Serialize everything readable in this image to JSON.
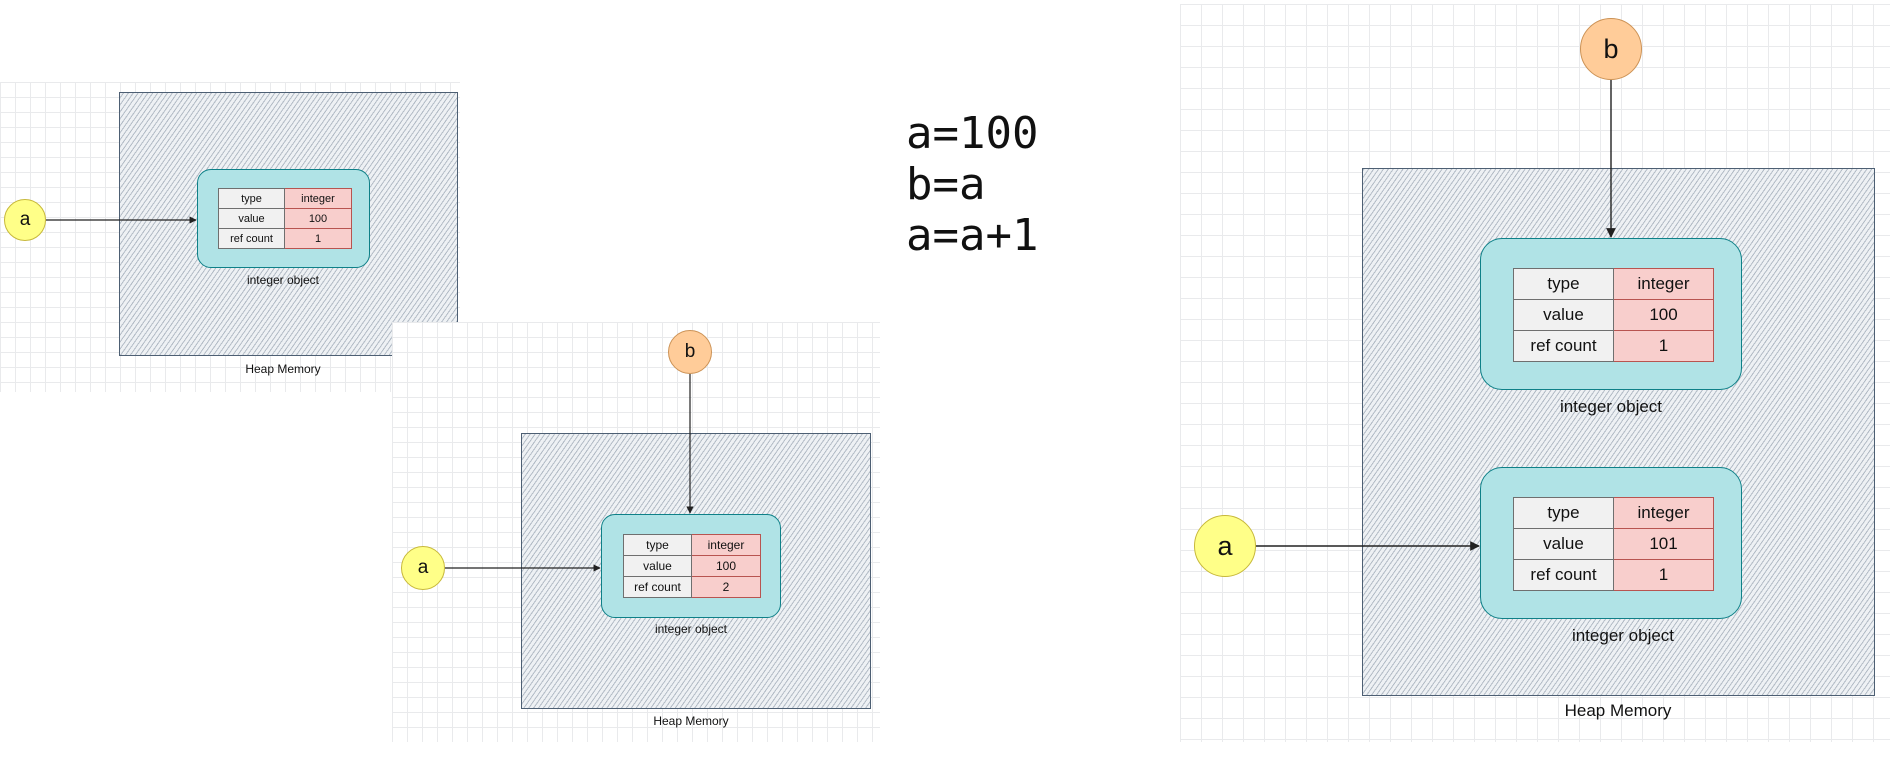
{
  "code": {
    "lines": [
      "a=100",
      "b=a",
      "a=a+1"
    ]
  },
  "panel1": {
    "node_a": "a",
    "object": {
      "rows": [
        {
          "key": "type",
          "value": "integer"
        },
        {
          "key": "value",
          "value": "100"
        },
        {
          "key": "ref count",
          "value": "1"
        }
      ],
      "label": "integer object"
    },
    "heap_label": "Heap Memory"
  },
  "panel2": {
    "node_a": "a",
    "node_b": "b",
    "object": {
      "rows": [
        {
          "key": "type",
          "value": "integer"
        },
        {
          "key": "value",
          "value": "100"
        },
        {
          "key": "ref count",
          "value": "2"
        }
      ],
      "label": "integer object"
    },
    "heap_label": "Heap Memory"
  },
  "panel3": {
    "node_a": "a",
    "node_b": "b",
    "object_top": {
      "rows": [
        {
          "key": "type",
          "value": "integer"
        },
        {
          "key": "value",
          "value": "100"
        },
        {
          "key": "ref count",
          "value": "1"
        }
      ],
      "label": "integer object"
    },
    "object_bottom": {
      "rows": [
        {
          "key": "type",
          "value": "integer"
        },
        {
          "key": "value",
          "value": "101"
        },
        {
          "key": "ref count",
          "value": "1"
        }
      ],
      "label": "integer object"
    },
    "heap_label": "Heap Memory"
  },
  "colors": {
    "heap_border": "#4d5f73",
    "object_fill": "#b0e3e6",
    "object_border": "#0e8088",
    "value_cell_fill": "#f8cecc",
    "variable_a_fill": "#ffff88",
    "variable_b_fill": "#ffcc99"
  }
}
